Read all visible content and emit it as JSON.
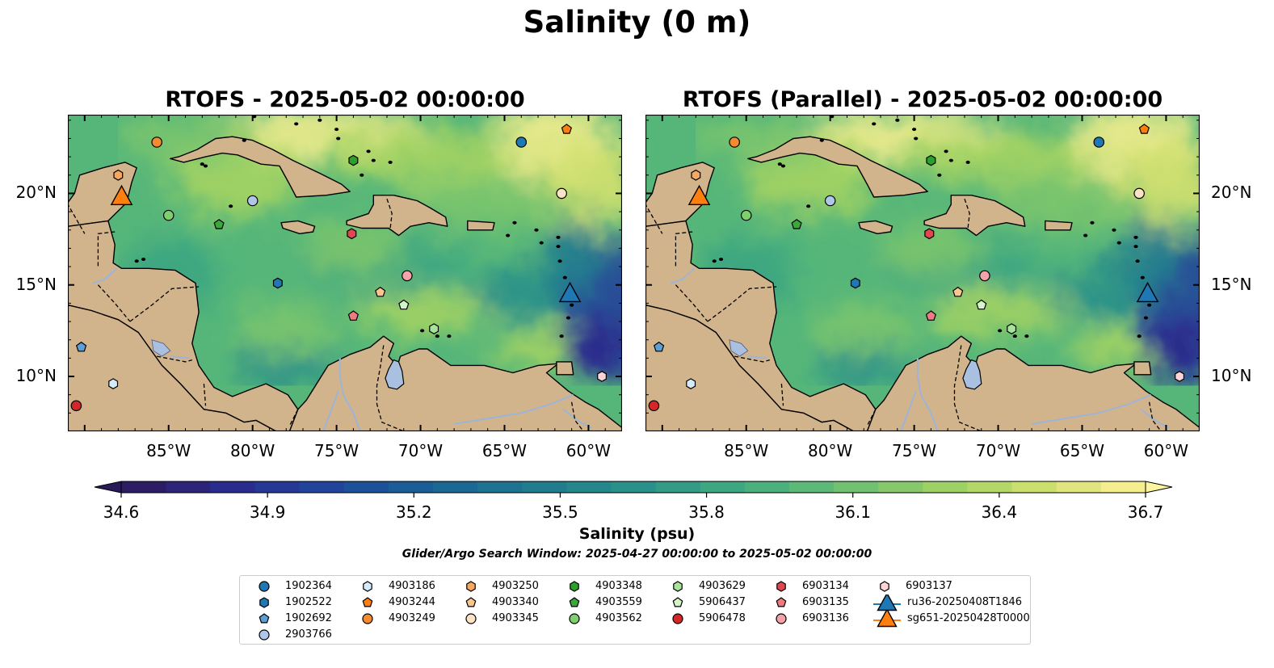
{
  "figure": {
    "title": "Salinity (0 m)"
  },
  "panels": [
    {
      "title": "RTOFS - 2025-05-02 00:00:00"
    },
    {
      "title": "RTOFS (Parallel) - 2025-05-02 00:00:00"
    }
  ],
  "map": {
    "lon_range": [
      -91,
      -58
    ],
    "lat_range": [
      7,
      24.3
    ],
    "x_ticks": [
      "85°W",
      "80°W",
      "75°W",
      "70°W",
      "65°W",
      "60°W"
    ],
    "y_ticks": [
      "20°N",
      "15°N",
      "10°N"
    ],
    "colors": {
      "land": "#d2b48c",
      "lake": "#a9c0e0",
      "river": "#9db4d8",
      "coast": "#000000"
    }
  },
  "colorbar": {
    "label": "Salinity (psu)",
    "ticks": [
      "34.6",
      "34.9",
      "35.2",
      "35.5",
      "35.8",
      "36.1",
      "36.4",
      "36.7"
    ],
    "range": [
      34.6,
      36.7
    ],
    "colormap": [
      "#2c1c63",
      "#2a2a8c",
      "#22409a",
      "#1a5899",
      "#1c6c93",
      "#217e8e",
      "#2a908a",
      "#3aa582",
      "#56b679",
      "#7cc56d",
      "#a5d463",
      "#cfe06e",
      "#f4ee8e"
    ]
  },
  "search_window": "Glider/Argo Search Window: 2025-04-27 00:00:00 to 2025-05-02 00:00:00",
  "legend": {
    "items": [
      {
        "label": "1902364",
        "marker": "circle",
        "color": "#1f77b4"
      },
      {
        "label": "1902522",
        "marker": "hexagon",
        "color": "#1f77b4"
      },
      {
        "label": "1902692",
        "marker": "pentagon",
        "color": "#5b9fd4"
      },
      {
        "label": "2903766",
        "marker": "circle",
        "color": "#aec7e8"
      },
      {
        "label": "4903186",
        "marker": "hexagon",
        "color": "#d6ebfa"
      },
      {
        "label": "4903244",
        "marker": "pentagon",
        "color": "#ff7f0e"
      },
      {
        "label": "4903249",
        "marker": "circle",
        "color": "#f58a2e"
      },
      {
        "label": "4903250",
        "marker": "hexagon",
        "color": "#f7a860"
      },
      {
        "label": "4903340",
        "marker": "pentagon",
        "color": "#fbc58e"
      },
      {
        "label": "4903345",
        "marker": "circle",
        "color": "#fde2c4"
      },
      {
        "label": "4903348",
        "marker": "hexagon",
        "color": "#2ca02c"
      },
      {
        "label": "4903559",
        "marker": "pentagon",
        "color": "#3aa83a"
      },
      {
        "label": "4903562",
        "marker": "circle",
        "color": "#7fcf6f"
      },
      {
        "label": "4903629",
        "marker": "hexagon",
        "color": "#a8e39a"
      },
      {
        "label": "5906437",
        "marker": "pentagon",
        "color": "#d3f5c8"
      },
      {
        "label": "5906478",
        "marker": "circle",
        "color": "#d62728"
      },
      {
        "label": "6903134",
        "marker": "hexagon",
        "color": "#e04850"
      },
      {
        "label": "6903135",
        "marker": "pentagon",
        "color": "#ef7a82"
      },
      {
        "label": "6903136",
        "marker": "circle",
        "color": "#f4a3a8"
      },
      {
        "label": "6903137",
        "marker": "hexagon",
        "color": "#fcd3d6"
      },
      {
        "label": "ru36-20250408T1846",
        "marker": "triangle",
        "color": "#1f77b4"
      },
      {
        "label": "sg651-20250428T0000",
        "marker": "triangle",
        "color": "#ff7f0e"
      }
    ]
  },
  "floats": [
    {
      "id": "1902364",
      "lon": -64.0,
      "lat": 22.8
    },
    {
      "id": "1902522",
      "lon": -78.5,
      "lat": 15.1
    },
    {
      "id": "1902692",
      "lon": -90.2,
      "lat": 11.6
    },
    {
      "id": "2903766",
      "lon": -80.0,
      "lat": 19.6
    },
    {
      "id": "4903186",
      "lon": -88.3,
      "lat": 9.6
    },
    {
      "id": "4903244",
      "lon": -61.3,
      "lat": 23.5
    },
    {
      "id": "4903249",
      "lon": -85.7,
      "lat": 22.8
    },
    {
      "id": "4903250",
      "lon": -88.0,
      "lat": 21.0
    },
    {
      "id": "4903340",
      "lon": -72.4,
      "lat": 14.6
    },
    {
      "id": "4903345",
      "lon": -61.6,
      "lat": 20.0
    },
    {
      "id": "4903348",
      "lon": -74.0,
      "lat": 21.8
    },
    {
      "id": "4903559",
      "lon": -82.0,
      "lat": 18.3
    },
    {
      "id": "4903562",
      "lon": -85.0,
      "lat": 18.8
    },
    {
      "id": "4903629",
      "lon": -69.2,
      "lat": 12.6
    },
    {
      "id": "5906437",
      "lon": -71.0,
      "lat": 13.9
    },
    {
      "id": "5906478",
      "lon": -90.5,
      "lat": 8.4
    },
    {
      "id": "6903134",
      "lon": -74.1,
      "lat": 17.8
    },
    {
      "id": "6903135",
      "lon": -74.0,
      "lat": 13.3
    },
    {
      "id": "6903136",
      "lon": -70.8,
      "lat": 15.5
    },
    {
      "id": "6903137",
      "lon": -59.2,
      "lat": 10.0
    }
  ],
  "gliders": [
    {
      "id": "ru36-20250408T1846",
      "lon": -61.1,
      "lat": 14.5
    },
    {
      "id": "sg651-20250428T0000",
      "lon": -87.8,
      "lat": 19.8
    }
  ]
}
